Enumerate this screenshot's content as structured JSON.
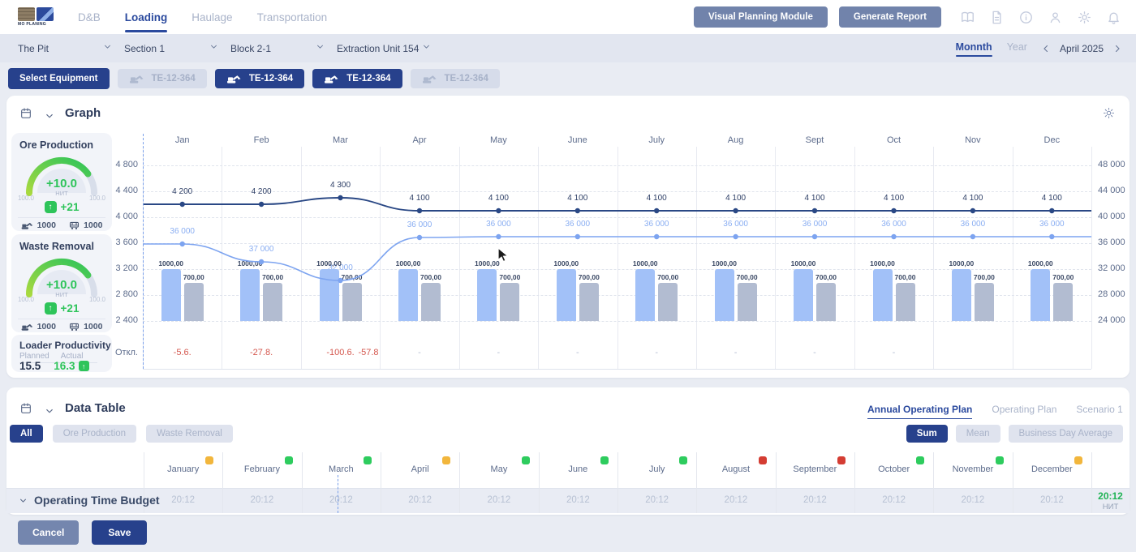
{
  "app": {
    "logo": "MO PLANING"
  },
  "nav": {
    "tabs": [
      {
        "label": "D&B",
        "active": false
      },
      {
        "label": "Loading",
        "active": true
      },
      {
        "label": "Haulage",
        "active": false
      },
      {
        "label": "Transportation",
        "active": false
      }
    ]
  },
  "toolbar": {
    "visual_planning_label": "Visual Planning Module",
    "generate_report_label": "Generate Report",
    "icons": [
      "book-icon",
      "document-icon",
      "info-icon",
      "user-icon",
      "settings-icon",
      "bell-icon"
    ]
  },
  "filters": {
    "dropdowns": [
      {
        "label": "The Pit"
      },
      {
        "label": "Section 1"
      },
      {
        "label": "Block 2-1"
      },
      {
        "label": "Extraction Unit 154"
      }
    ]
  },
  "period": {
    "tabs": [
      {
        "label": "Monnth",
        "active": true
      },
      {
        "label": "Year",
        "active": false
      }
    ],
    "date": "April 2025"
  },
  "equipment": {
    "select_label": "Select Equipment",
    "units": [
      {
        "label": "TE-12-364",
        "active": false
      },
      {
        "label": "TE-12-364",
        "active": true
      },
      {
        "label": "TE-12-364",
        "active": true
      },
      {
        "label": "TE-12-364",
        "active": false
      }
    ]
  },
  "graph": {
    "title": "Graph",
    "gauges": [
      {
        "title": "Ore Production",
        "value": "+10.0",
        "unit": "НИТ",
        "min": "100.0",
        "max": "100.0",
        "delta": "+21",
        "excavator_value": "1000",
        "truck_value": "1000"
      },
      {
        "title": "Waste Removal",
        "value": "+10.0",
        "unit": "НИТ",
        "min": "100.0",
        "max": "100.0",
        "delta": "+21",
        "excavator_value": "1000",
        "truck_value": "1000"
      }
    ],
    "loader": {
      "title": "Loader Productivity",
      "planned_label": "Planned",
      "actual_label": "Actual",
      "planned": "15.5",
      "actual": "16.3"
    }
  },
  "chart_data": {
    "type": "combo-bar-line",
    "categories": [
      "Jan",
      "Feb",
      "Mar",
      "Apr",
      "May",
      "June",
      "July",
      "Aug",
      "Sept",
      "Oct",
      "Nov",
      "Dec"
    ],
    "series": [
      {
        "name": "ore-plan-line",
        "type": "line",
        "axis": "left",
        "color": "#2a4885",
        "values": [
          4200,
          4200,
          4300,
          4100,
          4100,
          4100,
          4100,
          4100,
          4100,
          4100,
          4100,
          4100
        ],
        "labels": [
          "4 200",
          "4 200",
          "4 300",
          "4 100",
          "4 100",
          "4 100",
          "4 100",
          "4 100",
          "4 100",
          "4 100",
          "4 100",
          "4 100"
        ]
      },
      {
        "name": "waste-plan-line",
        "type": "line",
        "axis": "right",
        "color": "#7da4f0",
        "values": [
          36000,
          37000,
          32000,
          36000,
          36000,
          36000,
          36000,
          36000,
          36000,
          36000,
          36000,
          36000
        ],
        "labels": [
          "36 000",
          "37 000",
          "32 000",
          "36 000",
          "36 000",
          "36 000",
          "36 000",
          "36 000",
          "36 000",
          "36 000",
          "36 000",
          "36 000"
        ]
      },
      {
        "name": "plan-bar",
        "type": "bar",
        "color": "#a2c1f8",
        "values": [
          1000,
          1000,
          1000,
          1000,
          1000,
          1000,
          1000,
          1000,
          1000,
          1000,
          1000,
          1000
        ],
        "labels": [
          "1000,00",
          "1000,00",
          "1000,00",
          "1000,00",
          "1000,00",
          "1000,00",
          "1000,00",
          "1000,00",
          "1000,00",
          "1000,00",
          "1000,00",
          "1000,00"
        ]
      },
      {
        "name": "actual-bar",
        "type": "bar",
        "color": "#b2bcd1",
        "values": [
          700,
          700,
          700,
          700,
          700,
          700,
          700,
          700,
          700,
          700,
          700,
          700
        ],
        "labels": [
          "700,00",
          "700,00",
          "700,00",
          "700,00",
          "700,00",
          "700,00",
          "700,00",
          "700,00",
          "700,00",
          "700,00",
          "700,00",
          "700,00"
        ]
      }
    ],
    "left_axis": {
      "ticks": [
        "4 800",
        "4 400",
        "4 000",
        "3 600",
        "3 200",
        "2 800",
        "2 400"
      ],
      "min": 2400,
      "max": 4800
    },
    "right_axis": {
      "ticks": [
        "48 000",
        "44 000",
        "40 000",
        "36 000",
        "32 000",
        "28 000",
        "24 000"
      ],
      "min": 24000,
      "max": 48000
    },
    "deviation": {
      "label": "Откл.",
      "values": [
        "-5.6.",
        "-27.8.",
        "-100.6.",
        "-",
        "-",
        "-",
        "-",
        "-",
        "-",
        "-",
        "",
        ""
      ],
      "current": "-57.8"
    },
    "grid": true
  },
  "table": {
    "title": "Data Table",
    "plan_tabs": [
      {
        "label": "Annual Operating Plan",
        "active": true
      },
      {
        "label": "Operating Plan",
        "active": false
      },
      {
        "label": "Scenario 1",
        "active": false
      }
    ],
    "filter_chips": [
      {
        "label": "All",
        "active": true
      },
      {
        "label": "Ore Production",
        "active": false
      },
      {
        "label": "Waste Removal",
        "active": false
      }
    ],
    "aggregations": [
      {
        "label": "Sum",
        "active": true
      },
      {
        "label": "Mean",
        "active": false
      },
      {
        "label": "Business Day Average",
        "active": false
      }
    ],
    "status_colors": {
      "green": "#2ecc5e",
      "yellow": "#f2b63c",
      "red": "#d43d33"
    },
    "months": [
      {
        "name": "January",
        "status": "yellow"
      },
      {
        "name": "February",
        "status": "green"
      },
      {
        "name": "March",
        "status": "green"
      },
      {
        "name": "April",
        "status": "yellow"
      },
      {
        "name": "May",
        "status": "green"
      },
      {
        "name": "June",
        "status": "green"
      },
      {
        "name": "July",
        "status": "green"
      },
      {
        "name": "August",
        "status": "red"
      },
      {
        "name": "September",
        "status": "red"
      },
      {
        "name": "October",
        "status": "green"
      },
      {
        "name": "November",
        "status": "green"
      },
      {
        "name": "December",
        "status": "yellow"
      }
    ],
    "rows": [
      {
        "label": "Operating Time Budget",
        "values": [
          "20:12",
          "20:12",
          "20:12",
          "20:12",
          "20:12",
          "20:12",
          "20:12",
          "20:12",
          "20:12",
          "20:12",
          "20:12",
          "20:12"
        ],
        "total": "20:12",
        "total_unit": "НИТ"
      }
    ]
  },
  "footer": {
    "cancel_label": "Cancel",
    "save_label": "Save"
  },
  "colors": {
    "accent": "#27418c",
    "green": "#2ec45a",
    "red_text": "#d4574e",
    "bar_blue": "#a2c1f8",
    "bar_gray": "#b2bcd1",
    "line_dark": "#2a4885",
    "line_light": "#7da4f0"
  }
}
